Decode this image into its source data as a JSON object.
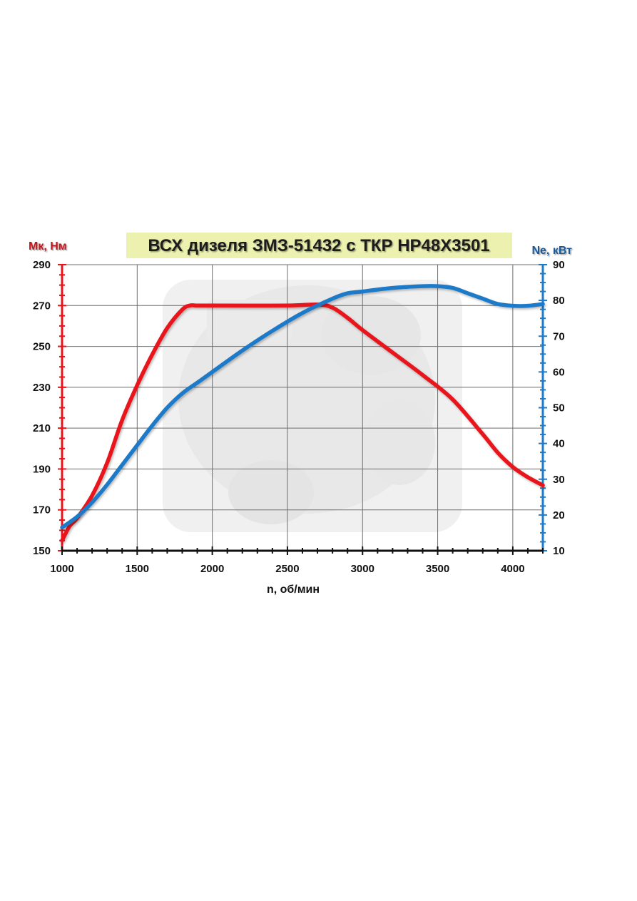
{
  "chart_data": {
    "type": "line",
    "title": "ВСХ дизеля ЗМЗ-51432 с ТКР HP48X3501",
    "xlabel": "n, об/мин",
    "ylabel_left": "Мк, Нм",
    "ylabel_right": "Ne, кВт",
    "xlim": [
      1000,
      4200
    ],
    "ylim_left": [
      150,
      290
    ],
    "ylim_right": [
      10,
      90
    ],
    "x_ticks": [
      1000,
      1500,
      2000,
      2500,
      3000,
      3500,
      4000
    ],
    "y_left_ticks": [
      150,
      170,
      190,
      210,
      230,
      250,
      270,
      290
    ],
    "y_right_ticks": [
      10,
      20,
      30,
      40,
      50,
      60,
      70,
      80,
      90
    ],
    "grid": true,
    "colors": {
      "torque": "#e8141b",
      "power": "#1f7ac8",
      "left_axis": "#e8141b",
      "right_axis": "#1f7ac8",
      "title_bg": "#ecf1b0"
    },
    "series": [
      {
        "axis": "left",
        "x": [
          1000,
          1050,
          1100,
          1200,
          1300,
          1400,
          1500,
          1600,
          1700,
          1800,
          1850,
          1900,
          2000,
          2500,
          2700,
          2800,
          2900,
          3000,
          3200,
          3400,
          3600,
          3800,
          3900,
          4000,
          4100,
          4200
        ],
        "values": [
          155,
          162,
          166,
          177,
          193,
          214,
          231,
          246,
          259,
          268,
          270,
          270,
          270,
          270,
          270.5,
          269,
          264,
          258,
          247,
          236,
          224,
          207,
          198,
          191,
          186,
          182
        ]
      },
      {
        "axis": "right",
        "x": [
          1000,
          1100,
          1200,
          1300,
          1400,
          1500,
          1600,
          1700,
          1800,
          1900,
          2000,
          2200,
          2400,
          2600,
          2800,
          2900,
          3000,
          3200,
          3400,
          3500,
          3600,
          3700,
          3800,
          3900,
          4000,
          4100,
          4200
        ],
        "values": [
          16.5,
          19.5,
          23.5,
          28.5,
          34,
          39.5,
          45,
          50,
          54,
          57,
          60,
          66,
          71.5,
          76.5,
          80.5,
          82,
          82.5,
          83.5,
          84,
          84,
          83.5,
          82,
          80.5,
          79,
          78.5,
          78.5,
          79
        ]
      }
    ]
  }
}
